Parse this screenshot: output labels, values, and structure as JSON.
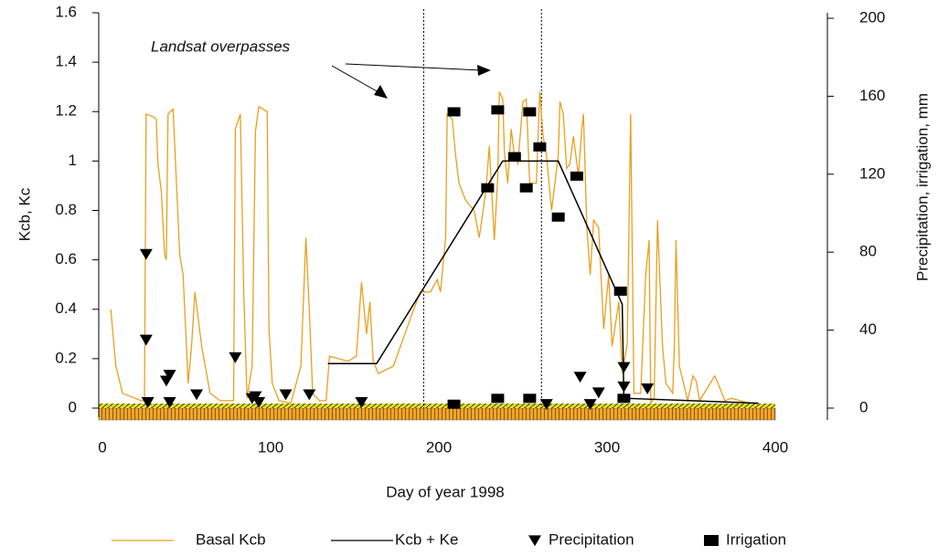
{
  "chart_data": {
    "type": "line",
    "annotation": "Landsat overpasses",
    "x_label": "Day of year 1998",
    "y_label": "Kcb, Kc",
    "y2_label": "Precipitation, irrigation, mm",
    "xlim": [
      0,
      400
    ],
    "xticks": [
      0,
      100,
      200,
      300,
      400
    ],
    "ylim": [
      0,
      1.6
    ],
    "yticks": [
      0,
      0.2,
      0.4,
      0.6,
      0.8,
      1,
      1.2,
      1.4,
      1.6
    ],
    "y2lim": [
      0,
      200
    ],
    "y2ticks": [
      0,
      40,
      80,
      120,
      160,
      200
    ],
    "vlines": [
      191,
      261
    ],
    "series": [
      {
        "name": "Basal Kcb",
        "type": "line",
        "color": "#e8a020",
        "x": [
          5,
          8,
          12,
          23,
          25,
          26,
          30,
          32,
          33,
          35,
          37,
          38,
          39,
          42,
          46,
          48,
          51,
          53,
          55,
          59,
          64,
          70,
          78,
          79,
          82,
          84,
          86,
          89,
          91,
          93,
          98,
          99,
          101,
          105,
          112,
          118,
          121,
          123,
          125,
          129,
          133,
          135,
          146,
          151,
          154,
          157,
          159,
          161,
          164,
          173,
          184,
          189,
          195,
          199,
          201,
          204,
          205,
          208,
          210,
          212,
          216,
          221,
          224,
          228,
          230,
          233,
          235,
          236,
          238,
          239,
          241,
          243,
          245,
          247,
          250,
          252,
          254,
          258,
          260,
          262,
          264,
          267,
          271,
          272,
          274,
          276,
          278,
          280,
          283,
          285,
          286,
          288,
          290,
          292,
          295,
          298,
          301,
          303,
          307,
          309,
          312,
          314,
          316,
          320,
          323,
          325,
          326,
          328,
          330,
          333,
          335,
          339,
          340,
          341,
          343,
          348,
          351,
          353,
          355,
          364,
          366,
          370,
          374,
          384
        ],
        "values": [
          0.4,
          0.17,
          0.06,
          0.03,
          0.03,
          1.19,
          1.18,
          1.17,
          0.99,
          0.88,
          0.62,
          0.6,
          1.19,
          1.21,
          0.62,
          0.54,
          0.1,
          0.25,
          0.47,
          0.25,
          0.06,
          0.03,
          0.03,
          1.13,
          1.19,
          0.47,
          0.04,
          0.17,
          1.12,
          1.22,
          1.2,
          0.32,
          0.1,
          0.03,
          0.02,
          0.17,
          0.69,
          0.4,
          0.06,
          0.03,
          0.03,
          0.21,
          0.19,
          0.21,
          0.51,
          0.3,
          0.43,
          0.19,
          0.14,
          0.17,
          0.38,
          0.47,
          0.47,
          0.52,
          0.47,
          0.69,
          1.19,
          1.17,
          1.02,
          0.91,
          0.84,
          0.8,
          0.69,
          0.88,
          1.06,
          0.68,
          0.93,
          1.28,
          1.25,
          1.03,
          0.91,
          1.13,
          1.02,
          0.99,
          1.24,
          1.25,
          0.91,
          0.91,
          1.28,
          1.1,
          1.02,
          0.8,
          1.02,
          1.24,
          1.19,
          0.97,
          0.99,
          1.1,
          0.94,
          1.13,
          1.19,
          0.73,
          0.54,
          0.76,
          0.73,
          0.32,
          0.54,
          0.25,
          0.43,
          0.14,
          0.26,
          1.19,
          0.06,
          0.06,
          0.54,
          0.68,
          0.02,
          0.04,
          0.76,
          0.25,
          0.1,
          0.06,
          0.25,
          0.68,
          0.17,
          0.03,
          0.13,
          0.11,
          0.03,
          0.13,
          0.1,
          0.03,
          0.04,
          0.02
        ]
      },
      {
        "name": "Kcb + Ke",
        "type": "line",
        "color": "#000000",
        "x": [
          134,
          163,
          238,
          271,
          309,
          310,
          390
        ],
        "values": [
          0.18,
          0.18,
          1.0,
          1.0,
          0.42,
          0.04,
          0.02
        ]
      },
      {
        "name": "Precipitation",
        "type": "scatter",
        "marker": "triangle",
        "axis": "y2",
        "color": "#000000",
        "x": [
          26,
          26,
          40,
          38,
          56,
          79,
          27,
          40,
          89,
          91,
          93,
          109,
          123,
          154,
          284,
          295,
          310,
          310,
          324,
          290,
          264
        ],
        "values": [
          79,
          35,
          17,
          14,
          7,
          26,
          3,
          3,
          5,
          6,
          3,
          7,
          7,
          3,
          16,
          8,
          21,
          11,
          10,
          2,
          2
        ]
      },
      {
        "name": "Irrigation",
        "type": "scatter",
        "marker": "square",
        "axis": "y2",
        "color": "#000000",
        "x": [
          209,
          235,
          254,
          229,
          252,
          260,
          271,
          282,
          308,
          209,
          235,
          254,
          310,
          245
        ],
        "values": [
          152,
          153,
          152,
          113,
          113,
          134,
          98,
          119,
          60,
          2,
          5,
          5,
          5,
          129
        ]
      }
    ]
  }
}
